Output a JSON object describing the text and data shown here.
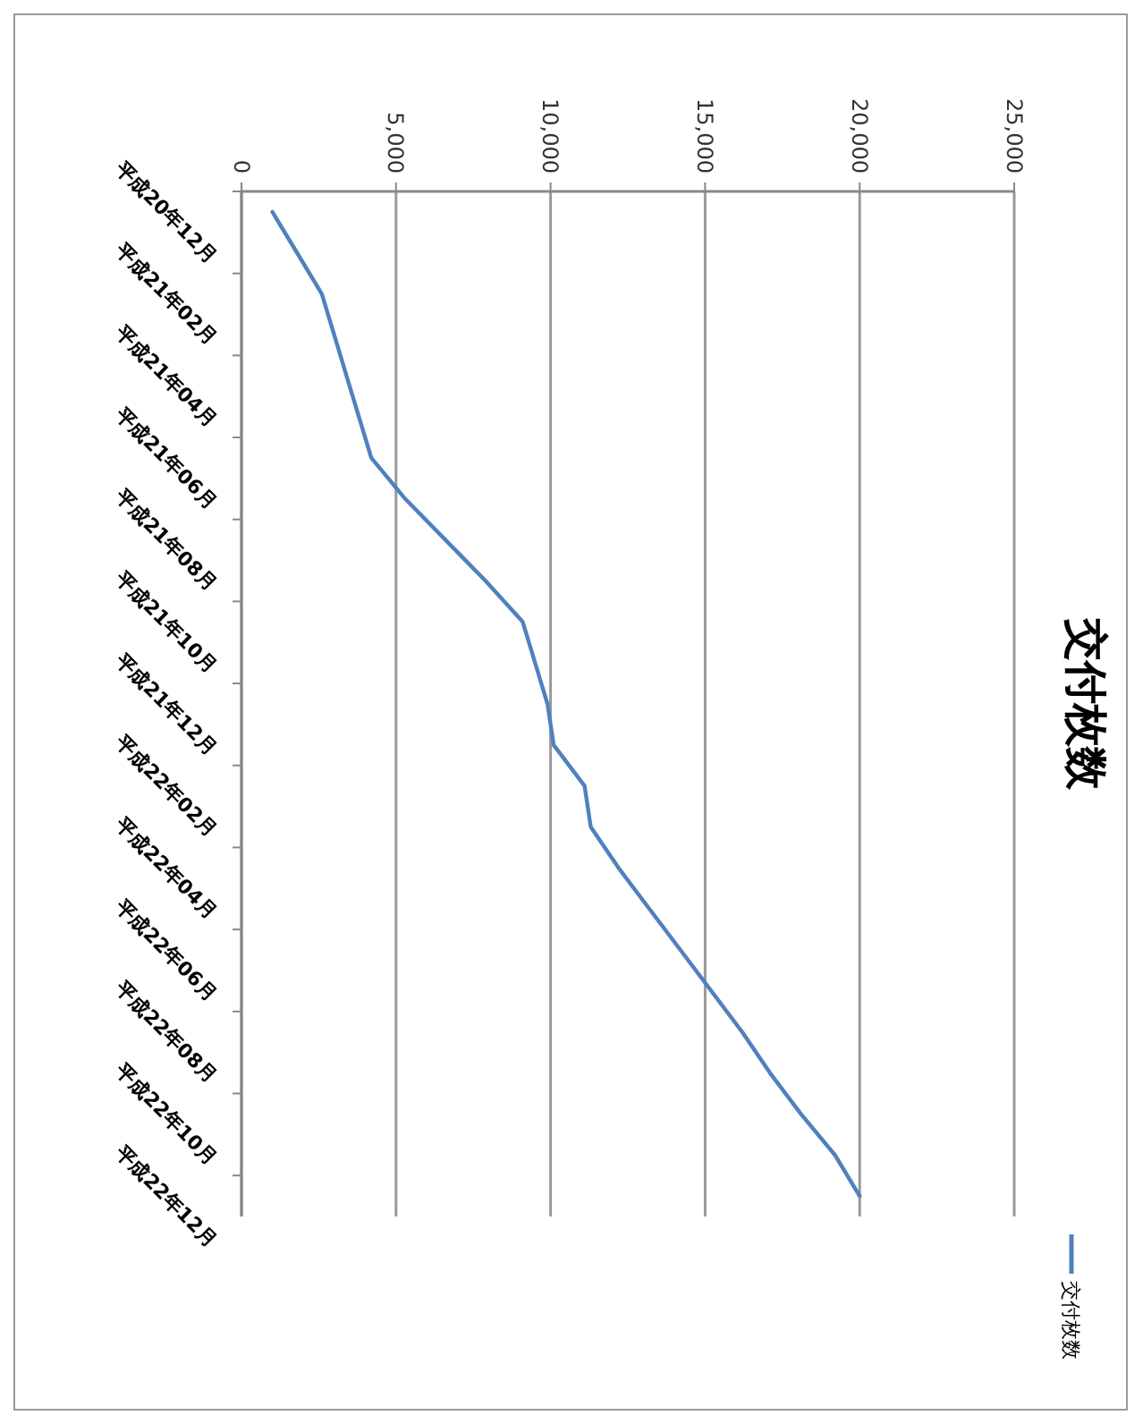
{
  "chart_data": {
    "type": "line",
    "title": "交付枚数",
    "categories": [
      "平成20年12月",
      null,
      "平成21年02月",
      null,
      "平成21年04月",
      null,
      "平成21年06月",
      null,
      "平成21年08月",
      null,
      "平成21年10月",
      null,
      "平成21年12月",
      null,
      "平成22年02月",
      null,
      "平成22年04月",
      null,
      "平成22年06月",
      null,
      "平成22年08月",
      null,
      "平成22年10月",
      null,
      "平成22年12月"
    ],
    "series": [
      {
        "name": "交付枚数",
        "color": "#4f81bd",
        "values": [
          1000,
          1800,
          2600,
          3000,
          3400,
          3800,
          4200,
          5300,
          6600,
          7900,
          9100,
          9500,
          9900,
          10100,
          11100,
          11300,
          12200,
          13200,
          14200,
          15200,
          16200,
          17100,
          18100,
          19200,
          20000
        ]
      }
    ],
    "orientation": "horizontal",
    "xlim": [
      0,
      25000
    ],
    "xticks": [
      0,
      {
        "value": 5000,
        "label": "5,000"
      },
      {
        "value": 10000,
        "label": "10,000"
      },
      {
        "value": 15000,
        "label": "15,000"
      },
      {
        "value": 20000,
        "label": "20,000"
      },
      {
        "value": 25000,
        "label": "25,000"
      }
    ],
    "grid": "x",
    "legend": "right",
    "marker": "none",
    "line_style": "solid"
  }
}
